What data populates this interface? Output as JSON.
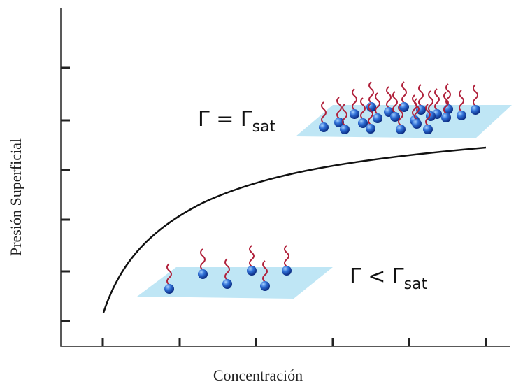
{
  "axes": {
    "y_label": "Presión Superficial",
    "x_label": "Concentración"
  },
  "annotations": [
    {
      "text": "Γ = Γ",
      "sub": "sat"
    },
    {
      "text": "Γ < Γ",
      "sub": "sat"
    }
  ]
}
